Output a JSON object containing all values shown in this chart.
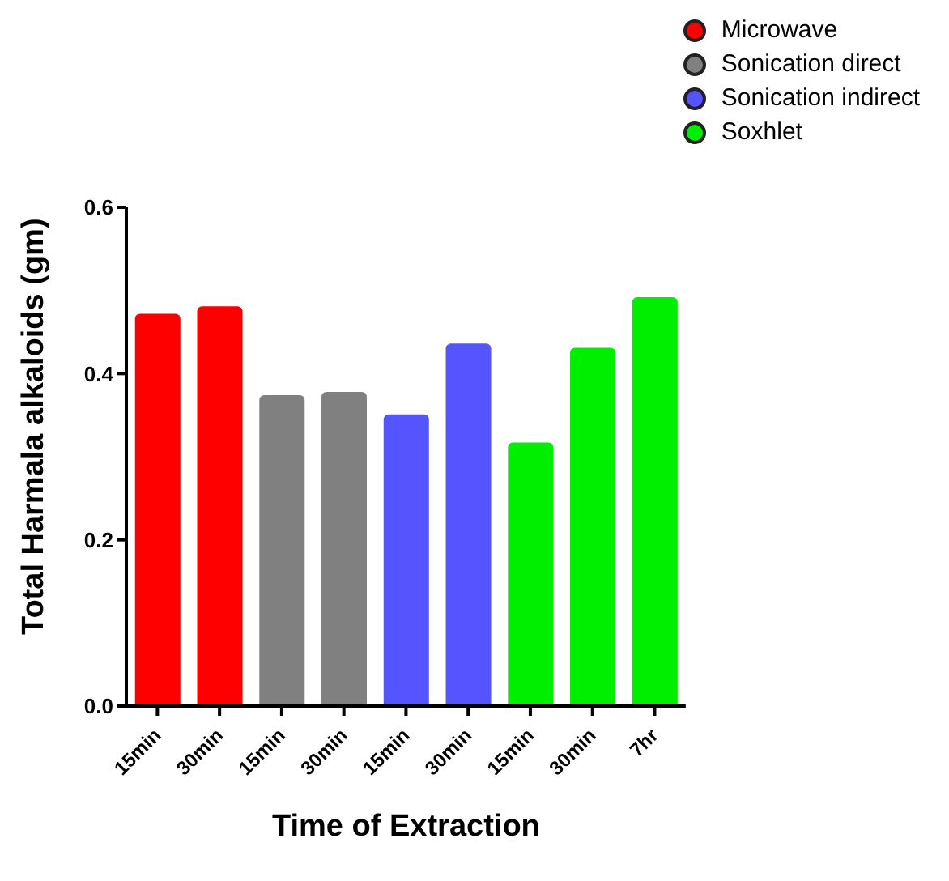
{
  "chart_data": {
    "type": "bar",
    "xlabel": "Time of Extraction",
    "ylabel": "Total Harmala alkaloids (gm)",
    "categories": [
      "15min",
      "30min",
      "15min",
      "30min",
      "15min",
      "30min",
      "15min",
      "30min",
      "7hr"
    ],
    "series": [
      {
        "name": "Microwave",
        "color": "#ff0000",
        "values": [
          0.472,
          0.481,
          null,
          null,
          null,
          null,
          null,
          null,
          null
        ]
      },
      {
        "name": "Sonication direct",
        "color": "#808080",
        "values": [
          null,
          null,
          0.374,
          0.378,
          null,
          null,
          null,
          null,
          null
        ]
      },
      {
        "name": "Sonication indirect",
        "color": "#5555ff",
        "values": [
          null,
          null,
          null,
          null,
          0.351,
          0.436,
          null,
          null,
          null
        ]
      },
      {
        "name": "Soxhlet",
        "color": "#00ee00",
        "values": [
          null,
          null,
          null,
          null,
          null,
          null,
          0.317,
          0.431,
          0.492
        ]
      }
    ],
    "ylim": [
      0,
      0.6
    ],
    "yticks": [
      {
        "value": 0,
        "label": "0.0"
      },
      0.2,
      0.4,
      0.6
    ],
    "grid": false,
    "legend": "top right"
  }
}
